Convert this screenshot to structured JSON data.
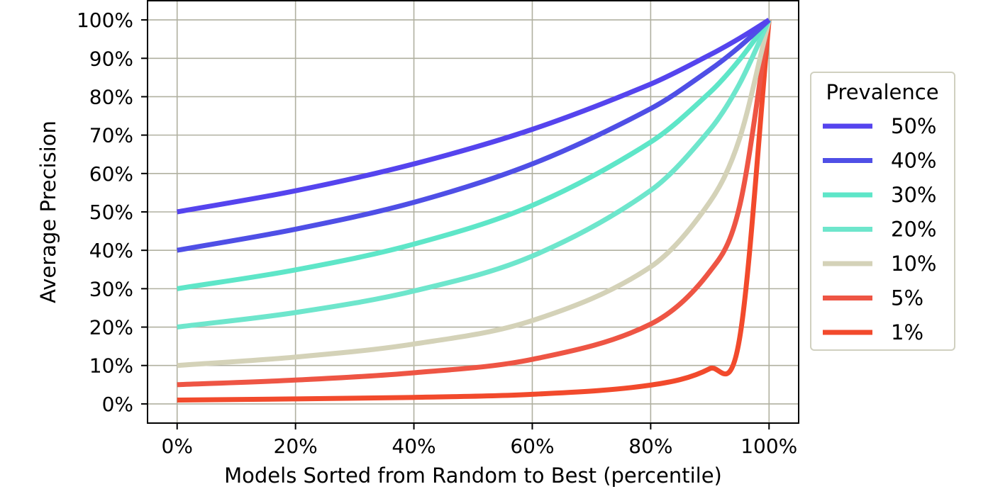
{
  "chart_data": {
    "type": "line",
    "title": "",
    "xlabel": "Models Sorted from Random to Best (percentile)",
    "ylabel": "Average Precision",
    "xlim": [
      -5,
      105
    ],
    "ylim": [
      -5,
      105
    ],
    "xticks": [
      0,
      20,
      40,
      60,
      80,
      100
    ],
    "xtick_labels": [
      "0%",
      "20%",
      "40%",
      "60%",
      "80%",
      "100%"
    ],
    "yticks": [
      0,
      10,
      20,
      30,
      40,
      50,
      60,
      70,
      80,
      90,
      100
    ],
    "ytick_labels": [
      "0%",
      "10%",
      "20%",
      "30%",
      "40%",
      "50%",
      "60%",
      "70%",
      "80%",
      "90%",
      "100%"
    ],
    "grid": true,
    "legend": {
      "title": "Prevalence",
      "placement": "outside-right"
    },
    "x": [
      0,
      20,
      40,
      60,
      80,
      90,
      95,
      100
    ],
    "series": [
      {
        "name": "50%",
        "color": "#5544ee",
        "values": [
          50,
          55.5,
          62.5,
          71.5,
          83.3,
          90.9,
          95.2,
          100
        ]
      },
      {
        "name": "40%",
        "color": "#4f4fe6",
        "values": [
          40,
          45.5,
          52.5,
          62.5,
          76.9,
          87.0,
          93.0,
          100
        ]
      },
      {
        "name": "30%",
        "color": "#5ee6c8",
        "values": [
          30,
          34.9,
          41.6,
          51.7,
          68.2,
          81.1,
          89.6,
          100
        ]
      },
      {
        "name": "20%",
        "color": "#6ee6cc",
        "values": [
          20,
          23.8,
          29.4,
          38.5,
          55.6,
          71.4,
          83.3,
          100
        ]
      },
      {
        "name": "10%",
        "color": "#d4d2b8",
        "values": [
          10,
          12.2,
          15.6,
          21.7,
          35.7,
          52.6,
          69.0,
          100
        ]
      },
      {
        "name": "5%",
        "color": "#ee5544",
        "values": [
          5,
          6.2,
          8.1,
          11.6,
          20.8,
          34.5,
          51.3,
          100
        ]
      },
      {
        "name": "1%",
        "color": "#f24a2c",
        "values": [
          1,
          1.3,
          1.7,
          2.5,
          4.9,
          9.2,
          16.8,
          100
        ]
      }
    ]
  }
}
